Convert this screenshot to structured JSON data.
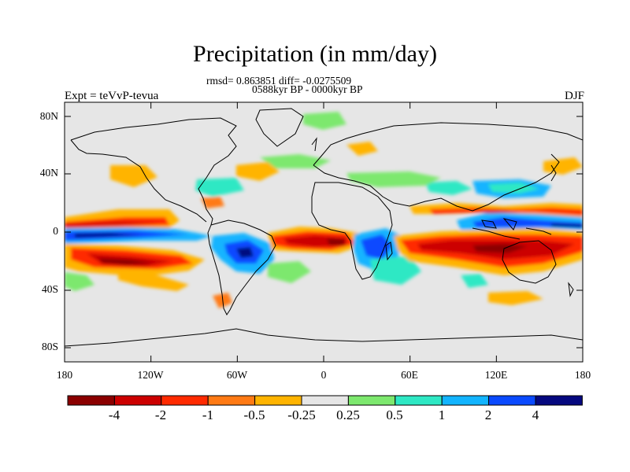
{
  "chart_data": {
    "type": "heatmap",
    "title": "Precipitation (in mm/day)",
    "stats_line": "rmsd= 0.863851 diff= -0.0275509",
    "period_line": "0588kyr BP - 0000kyr BP",
    "left_label": "Expt = teVvP-tevua",
    "right_label": "DJF",
    "x_ticks": [
      "180",
      "120W",
      "60W",
      "0",
      "60E",
      "120E",
      "180"
    ],
    "y_ticks": [
      "80N",
      "40N",
      "0",
      "40S",
      "80S"
    ],
    "colorbar": {
      "tick_labels": [
        "-4",
        "-2",
        "-1",
        "-0.5",
        "-0.25",
        "0.25",
        "0.5",
        "1",
        "2",
        "4"
      ],
      "colors": [
        "#8b0000",
        "#cc0000",
        "#ff2a00",
        "#ff7a14",
        "#ffb400",
        "#e6e6e6",
        "#7de86e",
        "#2ee8c4",
        "#12b4ff",
        "#0a4aff",
        "#05087f"
      ]
    },
    "map_background": "#e6e6e6"
  }
}
